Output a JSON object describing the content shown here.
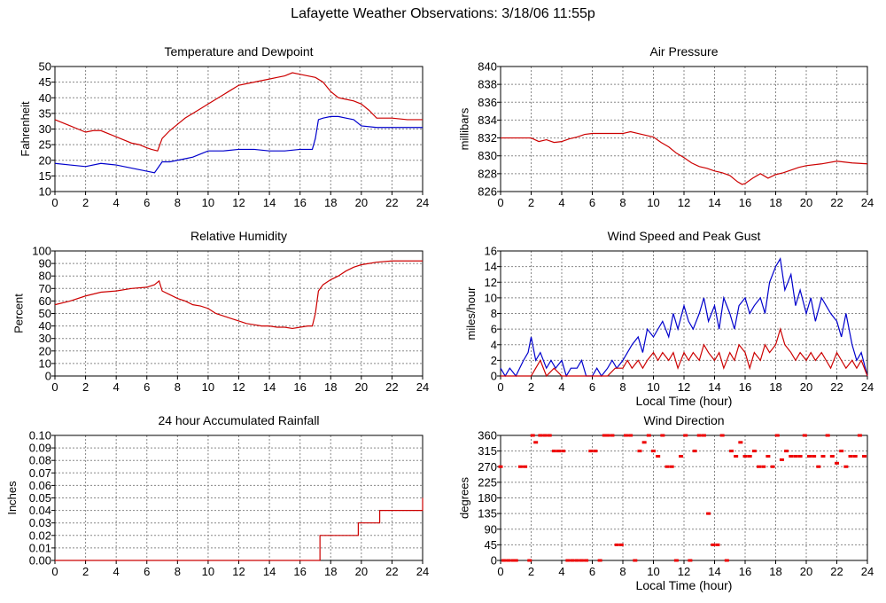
{
  "page": {
    "title": "Lafayette Weather Observations: 3/18/06 11:55p"
  },
  "colors": {
    "temperature": "#cc0000",
    "dewpoint": "#0000cc",
    "pressure": "#cc0000",
    "humidity": "#cc0000",
    "wind_speed": "#cc0000",
    "peak_gust": "#0000cc",
    "rainfall": "#cc0000",
    "direction": "#ee0000",
    "grid": "#888888",
    "frame": "#000000"
  },
  "chart_data": [
    {
      "id": "temperature-dewpoint",
      "type": "line",
      "title": "Temperature and Dewpoint",
      "xlabel": "",
      "ylabel": "Fahrenheit",
      "xlim": [
        0,
        24
      ],
      "ylim": [
        10,
        50
      ],
      "xticks": [
        "0",
        "2",
        "4",
        "6",
        "8",
        "10",
        "12",
        "14",
        "16",
        "18",
        "20",
        "22",
        "24"
      ],
      "yticks": [
        "10",
        "15",
        "20",
        "25",
        "30",
        "35",
        "40",
        "45",
        "50"
      ],
      "grid": true,
      "series": [
        {
          "key": "temperature",
          "color": "#cc0000",
          "x": [
            0,
            1,
            1.5,
            2,
            2.5,
            3,
            3.5,
            4,
            4.5,
            5,
            5.5,
            6,
            6.3,
            6.7,
            7,
            7.5,
            8,
            8.5,
            9,
            9.5,
            10,
            10.5,
            11,
            11.5,
            12,
            12.5,
            13,
            13.5,
            14,
            14.5,
            15,
            15.5,
            16,
            16.5,
            17,
            17.5,
            18,
            18.5,
            19,
            19.5,
            20,
            20.5,
            21,
            22,
            23,
            24
          ],
          "y": [
            33,
            31,
            30,
            29,
            29.5,
            29.5,
            28.5,
            27.5,
            26.5,
            25.5,
            25,
            24,
            23.5,
            23,
            27,
            29.5,
            31.5,
            33.5,
            35,
            36.5,
            38,
            39.5,
            41,
            42.5,
            44,
            44.5,
            45,
            45.5,
            46,
            46.5,
            47,
            48,
            47.5,
            47,
            46.5,
            45,
            42,
            40,
            39.5,
            39,
            38,
            36,
            33.5,
            33.5,
            33,
            33
          ]
        },
        {
          "key": "dewpoint",
          "color": "#0000cc",
          "x": [
            0,
            1,
            2,
            3,
            4,
            5,
            5.5,
            6,
            6.5,
            7,
            7.5,
            8,
            8.5,
            9,
            9.5,
            10,
            11,
            12,
            13,
            14,
            15,
            16,
            16.8,
            17,
            17.2,
            17.5,
            18,
            18.5,
            19,
            19.5,
            20,
            21,
            22,
            23,
            24
          ],
          "y": [
            19,
            18.5,
            18,
            19,
            18.5,
            17.5,
            17,
            16.5,
            16,
            19.5,
            19.5,
            20,
            20.5,
            21,
            22,
            23,
            23,
            23.5,
            23.5,
            23,
            23,
            23.5,
            23.5,
            27,
            33,
            33.5,
            34,
            34,
            33.5,
            33,
            31,
            30.5,
            30.5,
            30.5,
            30.5
          ]
        }
      ]
    },
    {
      "id": "air-pressure",
      "type": "line",
      "title": "Air Pressure",
      "xlabel": "",
      "ylabel": "millibars",
      "xlim": [
        0,
        24
      ],
      "ylim": [
        826,
        840
      ],
      "xticks": [
        "0",
        "2",
        "4",
        "6",
        "8",
        "10",
        "12",
        "14",
        "16",
        "18",
        "20",
        "22",
        "24"
      ],
      "yticks": [
        "826",
        "828",
        "830",
        "832",
        "834",
        "836",
        "838",
        "840"
      ],
      "grid": true,
      "series": [
        {
          "key": "pressure",
          "color": "#cc0000",
          "x": [
            0,
            1,
            2,
            2.5,
            3,
            3.5,
            4,
            4.5,
            5,
            5.5,
            6,
            7,
            8,
            8.5,
            9,
            9.5,
            10,
            10.5,
            11,
            11.5,
            12,
            12.5,
            13,
            13.5,
            14,
            14.5,
            15,
            15.5,
            15.8,
            16,
            16.5,
            17,
            17.5,
            18,
            18.5,
            19,
            19.5,
            20,
            21,
            22,
            23,
            24
          ],
          "y": [
            832,
            832,
            832,
            831.6,
            831.8,
            831.5,
            831.6,
            831.9,
            832.1,
            832.4,
            832.5,
            832.5,
            832.5,
            832.7,
            832.5,
            832.3,
            832.1,
            831.5,
            831,
            830.3,
            829.8,
            829.2,
            828.8,
            828.6,
            828.3,
            828.1,
            827.8,
            827.1,
            826.8,
            826.9,
            827.5,
            828,
            827.5,
            827.9,
            828.1,
            828.4,
            828.7,
            828.9,
            829.1,
            829.4,
            829.2,
            829.1
          ]
        }
      ]
    },
    {
      "id": "relative-humidity",
      "type": "line",
      "title": "Relative Humidity",
      "xlabel": "",
      "ylabel": "Percent",
      "xlim": [
        0,
        24
      ],
      "ylim": [
        0,
        100
      ],
      "xticks": [
        "0",
        "2",
        "4",
        "6",
        "8",
        "10",
        "12",
        "14",
        "16",
        "18",
        "20",
        "22",
        "24"
      ],
      "yticks": [
        "0",
        "10",
        "20",
        "30",
        "40",
        "50",
        "60",
        "70",
        "80",
        "90",
        "100"
      ],
      "grid": true,
      "series": [
        {
          "key": "humidity",
          "color": "#cc0000",
          "x": [
            0,
            1,
            2,
            3,
            4,
            5,
            6,
            6.5,
            6.8,
            7,
            7.5,
            8,
            8.5,
            9,
            9.5,
            10,
            10.5,
            11,
            11.5,
            12,
            12.5,
            13,
            13.5,
            14,
            14.5,
            15,
            15.5,
            16,
            16.5,
            16.8,
            17,
            17.2,
            17.5,
            18,
            18.5,
            19,
            19.5,
            20,
            20.5,
            21,
            22,
            23,
            24
          ],
          "y": [
            57,
            60,
            64,
            67,
            68,
            70,
            71,
            73,
            76,
            68,
            65,
            62,
            60,
            57,
            56,
            54,
            50,
            48,
            46,
            44,
            42,
            41,
            40,
            40,
            39,
            39,
            38,
            39,
            40,
            40,
            50,
            68,
            73,
            77,
            80,
            84,
            87,
            89,
            90,
            91,
            92,
            92,
            92
          ]
        }
      ]
    },
    {
      "id": "wind-speed-gust",
      "type": "line",
      "title": "Wind Speed and Peak Gust",
      "xlabel": "Local Time (hour)",
      "ylabel": "miles/hour",
      "xlim": [
        0,
        24
      ],
      "ylim": [
        0,
        16
      ],
      "xticks": [
        "0",
        "2",
        "4",
        "6",
        "8",
        "10",
        "12",
        "14",
        "16",
        "18",
        "20",
        "22",
        "24"
      ],
      "yticks": [
        "0",
        "2",
        "4",
        "6",
        "8",
        "10",
        "12",
        "14",
        "16"
      ],
      "grid": true,
      "series": [
        {
          "key": "peak_gust",
          "color": "#0000cc",
          "x": [
            0,
            0.3,
            0.6,
            1,
            1.5,
            1.8,
            2,
            2.3,
            2.6,
            3,
            3.3,
            3.6,
            4,
            4.3,
            4.6,
            5,
            5.3,
            5.6,
            6,
            6.3,
            6.6,
            7,
            7.3,
            7.6,
            8,
            8.3,
            8.6,
            9,
            9.3,
            9.6,
            10,
            10.3,
            10.6,
            11,
            11.3,
            11.6,
            12,
            12.3,
            12.6,
            13,
            13.3,
            13.6,
            14,
            14.3,
            14.6,
            15,
            15.3,
            15.6,
            16,
            16.3,
            16.6,
            17,
            17.3,
            17.6,
            18,
            18.3,
            18.6,
            19,
            19.3,
            19.6,
            20,
            20.3,
            20.6,
            21,
            21.3,
            21.6,
            22,
            22.3,
            22.6,
            23,
            23.3,
            23.6,
            24
          ],
          "y": [
            1,
            0,
            1,
            0,
            2,
            3,
            5,
            2,
            3,
            1,
            2,
            1,
            2,
            0,
            1,
            1,
            2,
            0,
            0,
            1,
            0,
            1,
            2,
            1,
            2,
            3,
            4,
            5,
            3,
            6,
            5,
            6,
            7,
            5,
            8,
            6,
            9,
            7,
            6,
            8,
            10,
            7,
            9,
            6,
            10,
            8,
            6,
            9,
            10,
            8,
            9,
            10,
            8,
            12,
            14,
            15,
            11,
            13,
            9,
            11,
            8,
            10,
            7,
            10,
            9,
            8,
            7,
            5,
            8,
            4,
            2,
            3,
            0
          ]
        },
        {
          "key": "wind_speed",
          "color": "#cc0000",
          "x": [
            0,
            1,
            2,
            2.3,
            2.6,
            3,
            3.5,
            4,
            5,
            6,
            6.5,
            7,
            7.5,
            8,
            8.3,
            8.6,
            9,
            9.3,
            9.6,
            10,
            10.3,
            10.6,
            11,
            11.3,
            11.6,
            12,
            12.3,
            12.6,
            13,
            13.3,
            13.6,
            14,
            14.3,
            14.6,
            15,
            15.3,
            15.6,
            16,
            16.3,
            16.6,
            17,
            17.3,
            17.6,
            18,
            18.3,
            18.6,
            19,
            19.3,
            19.6,
            20,
            20.3,
            20.6,
            21,
            21.3,
            21.6,
            22,
            22.3,
            22.6,
            23,
            23.3,
            23.6,
            24
          ],
          "y": [
            0,
            0,
            0,
            1,
            2,
            0,
            1,
            0,
            0,
            0,
            0,
            0,
            1,
            1,
            2,
            1,
            2,
            1,
            2,
            3,
            2,
            3,
            2,
            3,
            1,
            3,
            2,
            3,
            2,
            4,
            3,
            2,
            3,
            1,
            3,
            2,
            4,
            3,
            1,
            3,
            2,
            4,
            3,
            4,
            6,
            4,
            3,
            2,
            3,
            2,
            3,
            2,
            3,
            2,
            1,
            3,
            2,
            1,
            2,
            1,
            2,
            0
          ]
        }
      ]
    },
    {
      "id": "rainfall",
      "type": "line",
      "title": "24 hour Accumulated Rainfall",
      "xlabel": "",
      "ylabel": "Inches",
      "xlim": [
        0,
        24
      ],
      "ylim": [
        0,
        0.1
      ],
      "xticks": [
        "0",
        "2",
        "4",
        "6",
        "8",
        "10",
        "12",
        "14",
        "16",
        "18",
        "20",
        "22",
        "24"
      ],
      "yticks": [
        "0.00",
        "0.01",
        "0.02",
        "0.03",
        "0.04",
        "0.05",
        "0.06",
        "0.07",
        "0.08",
        "0.09",
        "0.10"
      ],
      "grid": true,
      "series": [
        {
          "key": "rainfall",
          "color": "#cc0000",
          "step": true,
          "x": [
            0,
            17.3,
            19.8,
            21.2,
            23.9,
            24
          ],
          "y": [
            0,
            0.02,
            0.03,
            0.04,
            0.04,
            0.05
          ]
        }
      ]
    },
    {
      "id": "wind-direction",
      "type": "scatter",
      "title": "Wind Direction",
      "xlabel": "Local Time (hour)",
      "ylabel": "degrees",
      "xlim": [
        0,
        24
      ],
      "ylim": [
        0,
        360
      ],
      "xticks": [
        "0",
        "2",
        "4",
        "6",
        "8",
        "10",
        "12",
        "14",
        "16",
        "18",
        "20",
        "22",
        "24"
      ],
      "yticks": [
        "0",
        "45",
        "90",
        "135",
        "180",
        "225",
        "270",
        "315",
        "360"
      ],
      "grid": true,
      "series": [
        {
          "key": "direction",
          "color": "#ee0000",
          "x": [
            0,
            0.2,
            0.5,
            0.8,
            1,
            1.3,
            1.6,
            1.9,
            2.1,
            2.3,
            2.6,
            2.9,
            3.2,
            3.5,
            3.8,
            4.1,
            4.4,
            4.7,
            5,
            5.3,
            5.6,
            5.9,
            6.2,
            6.5,
            6.8,
            7,
            7.3,
            7.6,
            7.9,
            8.2,
            8.5,
            8.8,
            9.1,
            9.4,
            9.7,
            10,
            10.3,
            10.6,
            10.9,
            11.2,
            11.5,
            11.8,
            12.1,
            12.4,
            12.7,
            13,
            13.3,
            13.6,
            13.9,
            14.2,
            14.5,
            14.8,
            15.1,
            15.4,
            15.7,
            16,
            16.3,
            16.6,
            16.9,
            17.2,
            17.5,
            17.8,
            18.1,
            18.4,
            18.7,
            19,
            19.3,
            19.6,
            19.9,
            20.2,
            20.5,
            20.8,
            21.1,
            21.4,
            21.7,
            22,
            22.3,
            22.6,
            22.9,
            23.2,
            23.5,
            23.8
          ],
          "y": [
            270,
            0,
            0,
            0,
            0,
            270,
            270,
            0,
            360,
            340,
            360,
            360,
            360,
            315,
            315,
            315,
            0,
            0,
            0,
            0,
            0,
            315,
            315,
            0,
            360,
            360,
            360,
            45,
            45,
            360,
            360,
            0,
            315,
            340,
            360,
            315,
            300,
            360,
            270,
            270,
            0,
            300,
            360,
            0,
            315,
            360,
            360,
            135,
            45,
            45,
            360,
            0,
            315,
            300,
            340,
            300,
            300,
            315,
            270,
            270,
            300,
            270,
            360,
            290,
            315,
            300,
            300,
            300,
            360,
            300,
            300,
            270,
            300,
            360,
            300,
            280,
            315,
            270,
            300,
            300,
            360,
            300
          ]
        }
      ]
    }
  ]
}
